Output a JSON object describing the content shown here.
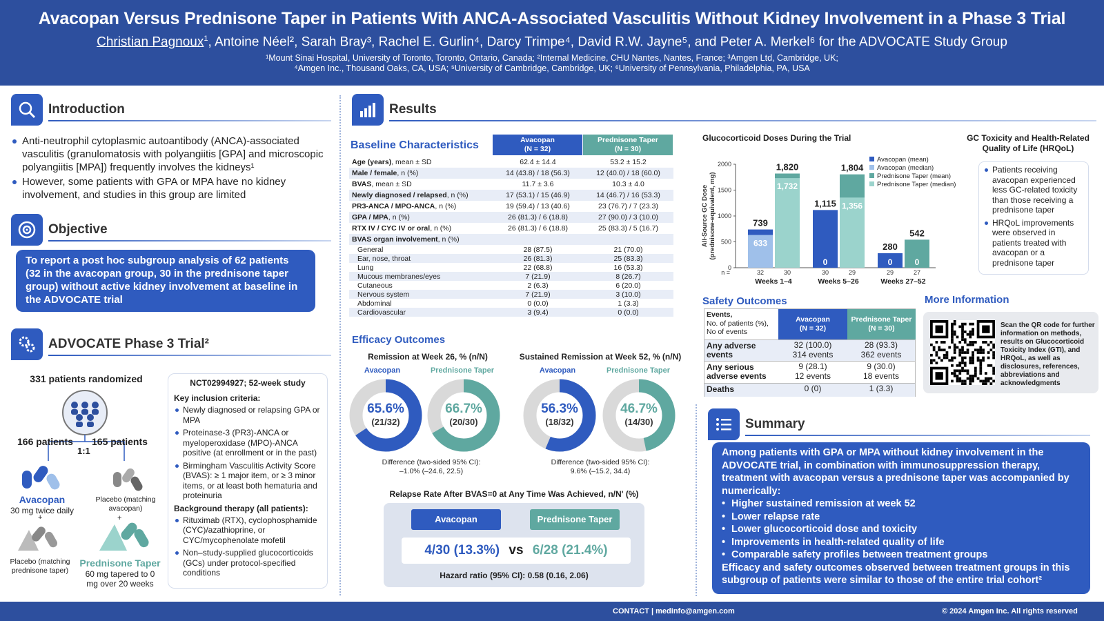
{
  "header": {
    "title": "Avacopan Versus Prednisone Taper in Patients With ANCA-Associated Vasculitis Without Kidney Involvement in a Phase 3 Trial",
    "first_author": "Christian Pagnoux",
    "first_author_sup": "1",
    "authors_rest": ", Antoine Néel², Sarah Bray³, Rachel E. Gurlin⁴, Darcy Trimpe⁴, David R.W. Jayne⁵, and Peter A. Merkel⁶ for the ADVOCATE Study Group",
    "affiliations_1": "¹Mount Sinai Hospital, University of Toronto, Toronto, Ontario, Canada; ²Internal Medicine, CHU Nantes, Nantes, France; ³Amgen Ltd, Cambridge, UK;",
    "affiliations_2": "⁴Amgen Inc., Thousand Oaks, CA, USA; ⁵University of Cambridge, Cambridge, UK; ⁶University of Pennsylvania, Philadelphia, PA, USA"
  },
  "intro": {
    "title": "Introduction",
    "b1": "Anti-neutrophil cytoplasmic autoantibody (ANCA)-associated vasculitis (granulomatosis with polyangiitis [GPA] and microscopic polyangiitis [MPA]) frequently involves the kidneys¹",
    "b2": "However, some patients with GPA or MPA have no kidney involvement, and studies in this group are limited"
  },
  "objective": {
    "title": "Objective",
    "text": "To report a post hoc subgroup analysis of 62 patients (32 in the avacopan group, 30 in the prednisone taper group) without active kidney involvement at baseline in the ADVOCATE trial"
  },
  "advocate": {
    "title": "ADVOCATE Phase 3 Trial²",
    "randomized": "331 patients randomized",
    "left_n": "166 patients",
    "right_n": "165 patients",
    "ratio": "1:1",
    "avacopan": "Avacopan",
    "avacopan_dose": "30 mg twice daily",
    "plus": "+",
    "placebo_pred": "Placebo (matching prednisone taper)",
    "placebo_avac": "Placebo (matching avacopan)",
    "pred_taper": "Prednisone Taper",
    "pred_dose": "60 mg tapered to 0 mg over 20 weeks",
    "study": "NCT02994927; 52-week study",
    "incl_title": "Key inclusion criteria:",
    "incl": [
      "Newly diagnosed or relapsing GPA or MPA",
      "Proteinase-3 (PR3)-ANCA or myeloperoxidase (MPO)-ANCA positive (at enrollment or in the past)",
      "Birmingham Vasculitis Activity Score (BVAS): ≥ 1 major item, or ≥ 3 minor items, or at least both hematuria and proteinuria"
    ],
    "bg_title": "Background therapy (all patients):",
    "bg": [
      "Rituximab (RTX), cyclophosphamide (CYC)/azathioprine, or CYC/mycophenolate mofetil",
      "Non–study-supplied glucocorticoids (GCs) under protocol-specified conditions"
    ]
  },
  "results": {
    "title": "Results",
    "baseline_title": "Baseline Characteristics",
    "col_a": "Avacopan",
    "col_a_n": "(N = 32)",
    "col_p": "Prednisone Taper",
    "col_p_n": "(N = 30)",
    "rows": [
      {
        "b": "Age (years)",
        "s": ", mean ± SD",
        "a": "62.4 ± 14.4",
        "p": "53.2 ± 15.2"
      },
      {
        "b": "Male / female",
        "s": ", n (%)",
        "a": "14 (43.8) / 18 (56.3)",
        "p": "12 (40.0) / 18 (60.0)"
      },
      {
        "b": "BVAS",
        "s": ", mean ± SD",
        "a": "11.7 ± 3.6",
        "p": "10.3 ± 4.0"
      },
      {
        "b": "Newly diagnosed / relapsed",
        "s": ", n (%)",
        "a": "17 (53.1) / 15 (46.9)",
        "p": "14 (46.7) / 16 (53.3)"
      },
      {
        "b": "PR3-ANCA / MPO-ANCA",
        "s": ", n (%)",
        "a": "19 (59.4) / 13 (40.6)",
        "p": "23 (76.7) / 7 (23.3)"
      },
      {
        "b": "GPA / MPA",
        "s": ", n (%)",
        "a": "26 (81.3) / 6 (18.8)",
        "p": "27 (90.0) / 3 (10.0)"
      },
      {
        "b": "RTX IV / CYC IV or oral",
        "s": ", n (%)",
        "a": "26 (81.3) / 6 (18.8)",
        "p": "25 (83.3) / 5 (16.7)"
      },
      {
        "b": "BVAS organ involvement",
        "s": ", n (%)",
        "a": "",
        "p": ""
      },
      {
        "b": "",
        "s": "General",
        "a": "28 (87.5)",
        "p": "21 (70.0)"
      },
      {
        "b": "",
        "s": "Ear, nose, throat",
        "a": "26 (81.3)",
        "p": "25 (83.3)"
      },
      {
        "b": "",
        "s": "Lung",
        "a": "22 (68.8)",
        "p": "16 (53.3)"
      },
      {
        "b": "",
        "s": "Mucous membranes/eyes",
        "a": "7 (21.9)",
        "p": "8 (26.7)"
      },
      {
        "b": "",
        "s": "Cutaneous",
        "a": "2 (6.3)",
        "p": "6 (20.0)"
      },
      {
        "b": "",
        "s": "Nervous system",
        "a": "7 (21.9)",
        "p": "3 (10.0)"
      },
      {
        "b": "",
        "s": "Abdominal",
        "a": "0 (0.0)",
        "p": "1 (3.3)"
      },
      {
        "b": "",
        "s": "Cardiovascular",
        "a": "3 (9.4)",
        "p": "0 (0.0)"
      }
    ],
    "efficacy_title": "Efficacy Outcomes",
    "rem26_title": "Remission at Week 26, % (n/N)",
    "rem52_title": "Sustained Remission at Week 52, % (n/N)",
    "lbl_a": "Avacopan",
    "lbl_p": "Prednisone Taper",
    "d1": {
      "v": "65.6%",
      "s": "(21/32)",
      "pct": 65.6
    },
    "d2": {
      "v": "66.7%",
      "s": "(20/30)",
      "pct": 66.7
    },
    "d3": {
      "v": "56.3%",
      "s": "(18/32)",
      "pct": 56.3
    },
    "d4": {
      "v": "46.7%",
      "s": "(14/30)",
      "pct": 46.7
    },
    "diff1a": "Difference (two-sided 95% CI):",
    "diff1b": "–1.0% (–24.6, 22.5)",
    "diff2a": "Difference (two-sided 95% CI):",
    "diff2b": "9.6% (–15.2, 34.4)",
    "relapse_title": "Relapse Rate After BVAS=0 at Any Time Was Achieved, n/N' (%)",
    "relapse_a_btn": "Avacopan",
    "relapse_p_btn": "Prednisone Taper",
    "relapse_a": "4/30 (13.3%)",
    "vs": "vs",
    "relapse_p": "6/28 (21.4%)",
    "hazard": "Hazard ratio (95% CI): 0.58 (0.16, 2.06)"
  },
  "chart_data": {
    "type": "bar",
    "title": "Glucocorticoid Doses During the Trial",
    "ylabel": "All-Source GC Dose (prednisone-equivalent, mg)",
    "ylim": [
      0,
      2000
    ],
    "yticks": [
      "0",
      "500",
      "1000",
      "1500",
      "2000"
    ],
    "categories": [
      "Weeks 1–4",
      "Weeks 5–26",
      "Weeks 27–52"
    ],
    "series": [
      {
        "name": "Avacopan (mean)",
        "values": [
          739,
          1115,
          280
        ],
        "color": "#2f5bbf"
      },
      {
        "name": "Avacopan (median)",
        "values": [
          633,
          0,
          0
        ],
        "color": "#9fc0ea"
      },
      {
        "name": "Prednisone Taper (mean)",
        "values": [
          1820,
          1804,
          542
        ],
        "color": "#5fa8a0"
      },
      {
        "name": "Prednisone Taper (median)",
        "values": [
          1732,
          1356,
          0
        ],
        "color": "#9bd3cc"
      }
    ],
    "mean_labels_a": [
      "739",
      "1,115",
      "280"
    ],
    "mean_labels_p": [
      "1,820",
      "1,804",
      "542"
    ],
    "median_labels_a": [
      "633",
      "0",
      "0"
    ],
    "median_labels_p": [
      "1,732",
      "1,356",
      "0"
    ],
    "n_prefix": "n =",
    "n_a": [
      "32",
      "30",
      "29"
    ],
    "n_p": [
      "30",
      "29",
      "27"
    ]
  },
  "gctox": {
    "title": "GC Toxicity and Health-Related Quality of Life (HRQoL)",
    "b1": "Patients receiving avacopan experienced less GC-related toxicity than those receiving a prednisone taper",
    "b2": "HRQoL improvements were observed in patients treated with avacopan or a prednisone taper"
  },
  "safety": {
    "title": "Safety Outcomes",
    "h1": "Events,",
    "h2": "No. of patients (%),",
    "h3": "No of events",
    "rows": [
      {
        "l": "Any adverse events",
        "a1": "32 (100.0)",
        "a2": "314 events",
        "p1": "28 (93.3)",
        "p2": "362 events"
      },
      {
        "l": "Any serious adverse events",
        "a1": "9 (28.1)",
        "a2": "12 events",
        "p1": "9 (30.0)",
        "p2": "18 events"
      },
      {
        "l": "Deaths",
        "a1": "0 (0)",
        "a2": "",
        "p1": "1 (3.3)",
        "p2": ""
      }
    ]
  },
  "more": {
    "title": "More Information",
    "text": "Scan the QR code for further information on methods, results on Glucocorticoid Toxicity Index (GTI), and HRQoL, as well as disclosures, references, abbreviations and acknowledgments"
  },
  "summary": {
    "title": "Summary",
    "lead": "Among patients with GPA or MPA without kidney involvement in the ADVOCATE trial, in combination with immunosuppression therapy, treatment with avacopan versus a prednisone taper was accompanied by numerically:",
    "items": [
      "Higher sustained remission at week 52",
      "Lower relapse rate",
      "Lower glucocorticoid dose and toxicity",
      "Improvements in health-related quality of life",
      "Comparable safety profiles between treatment groups"
    ],
    "tail": "Efficacy and safety outcomes observed between treatment groups in this subgroup of patients were similar to those of the entire trial cohort²"
  },
  "footer": {
    "contact": "CONTACT | medinfo@amgen.com",
    "copyright": "© 2024 Amgen Inc. All rights reserved"
  },
  "colors": {
    "brand": "#2d4f9e",
    "avacopan": "#2f5bbf",
    "prednisone": "#5fa8a0"
  }
}
